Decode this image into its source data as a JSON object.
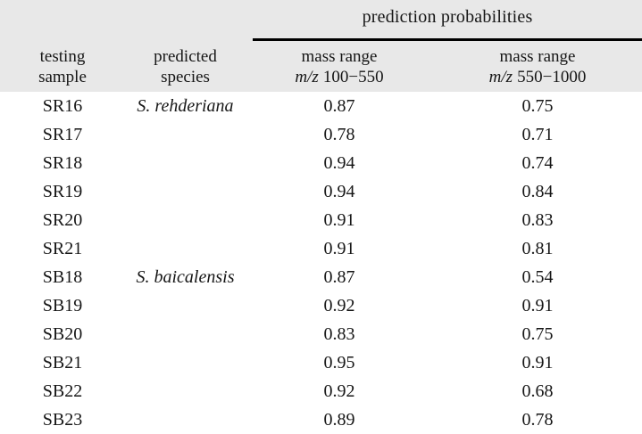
{
  "table": {
    "span_header": "prediction probabilities",
    "header": {
      "col1": [
        "testing",
        "sample"
      ],
      "col2": [
        "predicted",
        "species"
      ],
      "col3": [
        "mass range",
        "m/z",
        "100−550"
      ],
      "col4": [
        "mass range",
        "m/z",
        "550−1000"
      ]
    },
    "rows": [
      {
        "sample": "SR16",
        "species": "S. rehderiana",
        "p1": "0.87",
        "p2": "0.75"
      },
      {
        "sample": "SR17",
        "species": "",
        "p1": "0.78",
        "p2": "0.71"
      },
      {
        "sample": "SR18",
        "species": "",
        "p1": "0.94",
        "p2": "0.74"
      },
      {
        "sample": "SR19",
        "species": "",
        "p1": "0.94",
        "p2": "0.84"
      },
      {
        "sample": "SR20",
        "species": "",
        "p1": "0.91",
        "p2": "0.83"
      },
      {
        "sample": "SR21",
        "species": "",
        "p1": "0.91",
        "p2": "0.81"
      },
      {
        "sample": "SB18",
        "species": "S. baicalensis",
        "p1": "0.87",
        "p2": "0.54"
      },
      {
        "sample": "SB19",
        "species": "",
        "p1": "0.92",
        "p2": "0.91"
      },
      {
        "sample": "SB20",
        "species": "",
        "p1": "0.83",
        "p2": "0.75"
      },
      {
        "sample": "SB21",
        "species": "",
        "p1": "0.95",
        "p2": "0.91"
      },
      {
        "sample": "SB22",
        "species": "",
        "p1": "0.92",
        "p2": "0.68"
      },
      {
        "sample": "SB23",
        "species": "",
        "p1": "0.89",
        "p2": "0.78"
      }
    ],
    "colors": {
      "header_background": "#e8e8e8",
      "rule": "#000000",
      "text": "#161616"
    }
  },
  "chart_data": {
    "type": "table",
    "title": "prediction probabilities",
    "columns": [
      "testing sample",
      "predicted species",
      "mass range m/z 100−550",
      "mass range m/z 550−1000"
    ],
    "rows": [
      [
        "SR16",
        "S. rehderiana",
        0.87,
        0.75
      ],
      [
        "SR17",
        "",
        0.78,
        0.71
      ],
      [
        "SR18",
        "",
        0.94,
        0.74
      ],
      [
        "SR19",
        "",
        0.94,
        0.84
      ],
      [
        "SR20",
        "",
        0.91,
        0.83
      ],
      [
        "SR21",
        "",
        0.91,
        0.81
      ],
      [
        "SB18",
        "S. baicalensis",
        0.87,
        0.54
      ],
      [
        "SB19",
        "",
        0.92,
        0.91
      ],
      [
        "SB20",
        "",
        0.83,
        0.75
      ],
      [
        "SB21",
        "",
        0.95,
        0.91
      ],
      [
        "SB22",
        "",
        0.92,
        0.68
      ],
      [
        "SB23",
        "",
        0.89,
        0.78
      ]
    ]
  }
}
